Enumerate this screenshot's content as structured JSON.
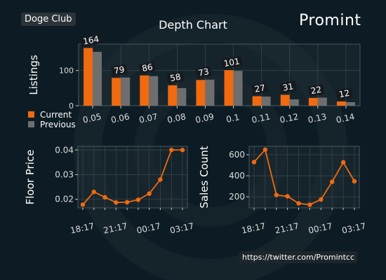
{
  "header": {
    "club_label": "Doge Club",
    "title": "Depth Chart",
    "logo_text": "Promint",
    "url": "https://twitter.com/Promintcc"
  },
  "colors": {
    "background": "#0d1c24",
    "current": "#f06a0f",
    "previous": "#6e6e6e",
    "line": "#f06a0f",
    "grid": "#3a4850",
    "text": "#ffffff"
  },
  "chart_data": [
    {
      "type": "bar",
      "ylabel": "Listings",
      "categories": [
        "0.05",
        "0.06",
        "0.07",
        "0.08",
        "0.09",
        "0.1",
        "0.11",
        "0.12",
        "0.13",
        "0.14"
      ],
      "ylim": [
        0,
        175
      ],
      "yticks": [
        0,
        100
      ],
      "series": [
        {
          "name": "Current",
          "values": [
            164,
            79,
            86,
            58,
            73,
            101,
            27,
            31,
            22,
            12
          ]
        },
        {
          "name": "Previous",
          "values": [
            153,
            80,
            84,
            50,
            74,
            99,
            26,
            18,
            23,
            10
          ]
        }
      ],
      "data_labels": [
        "164",
        "79",
        "86",
        "58",
        "73",
        "101",
        "27",
        "31",
        "22",
        "12"
      ],
      "legend": "left-below",
      "grid": true
    },
    {
      "type": "line",
      "ylabel": "Floor Price",
      "x": [
        "18:17",
        "19:17",
        "20:17",
        "21:17",
        "22:17",
        "23:17",
        "00:17",
        "01:17",
        "02:17",
        "03:17"
      ],
      "xtick_labels": [
        "18:17",
        "21:17",
        "00:17",
        "03:17"
      ],
      "values": [
        0.0178,
        0.023,
        0.0208,
        0.0187,
        0.0188,
        0.0198,
        0.0223,
        0.028,
        0.04,
        0.04
      ],
      "ylim": [
        0.0165,
        0.0415
      ],
      "yticks": [
        0.02,
        0.03,
        0.04
      ],
      "ytick_labels": [
        "0.02",
        "0.03",
        "0.04"
      ],
      "grid": true
    },
    {
      "type": "line",
      "ylabel": "Sales Count",
      "x": [
        "18:17",
        "19:17",
        "20:17",
        "21:17",
        "22:17",
        "23:17",
        "00:17",
        "01:17",
        "02:17",
        "03:17"
      ],
      "xtick_labels": [
        "18:17",
        "21:17",
        "00:17",
        "03:17"
      ],
      "values": [
        530,
        648,
        218,
        205,
        138,
        125,
        175,
        343,
        528,
        348
      ],
      "ylim": [
        95,
        680
      ],
      "yticks": [
        200,
        400,
        600
      ],
      "ytick_labels": [
        "200",
        "400",
        "600"
      ],
      "grid": true
    }
  ]
}
